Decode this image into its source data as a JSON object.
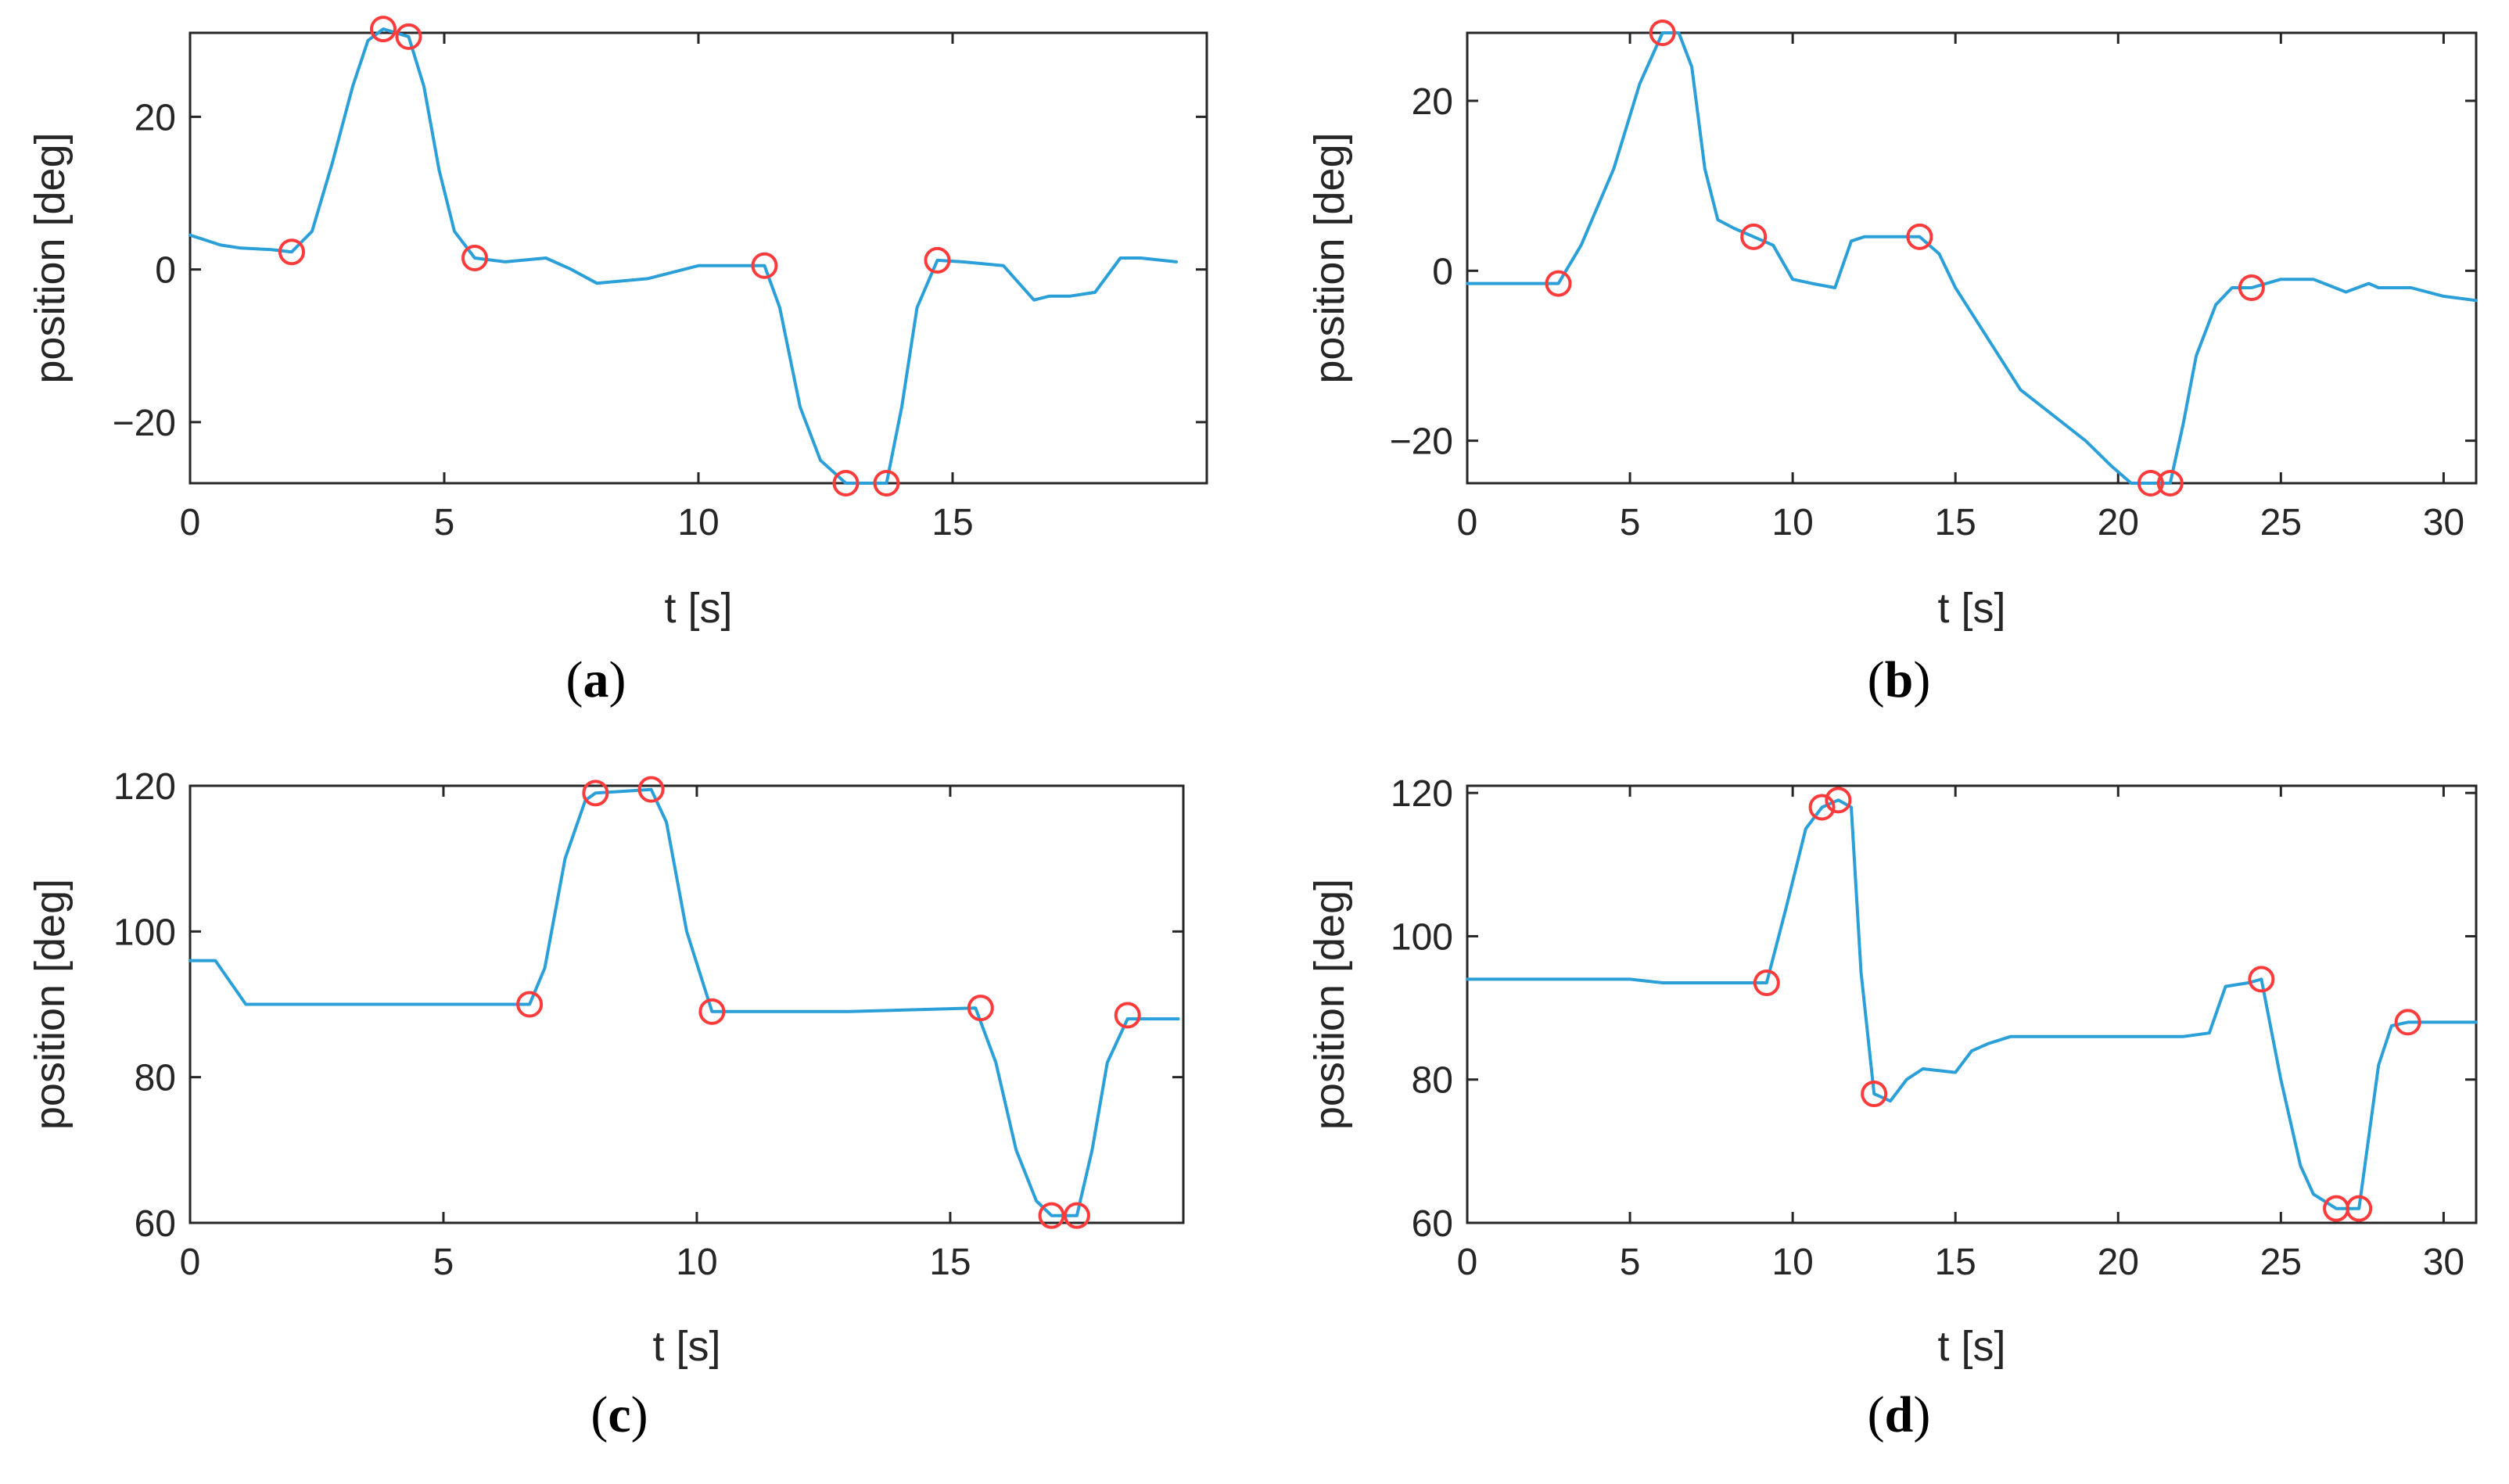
{
  "colors": {
    "line": "#2a9fd8",
    "marker": "#ff3b3b",
    "axis": "#262626",
    "background": "#ffffff"
  },
  "panel_labels": {
    "a": "a",
    "b": "b",
    "c": "c",
    "d": "d"
  },
  "chart_data": [
    {
      "id": "a",
      "type": "line",
      "title": "",
      "xlabel": "t [s]",
      "ylabel": "position [deg]",
      "xlim": [
        0,
        20
      ],
      "ylim": [
        -28,
        31
      ],
      "xticks": [
        0,
        5,
        10,
        15
      ],
      "yticks": [
        -20,
        0,
        20
      ],
      "grid": false,
      "series": [
        {
          "name": "position",
          "x": [
            0,
            0.6,
            1.0,
            1.6,
            2.0,
            2.4,
            2.8,
            3.2,
            3.5,
            3.8,
            4.3,
            4.6,
            4.9,
            5.2,
            5.6,
            6.2,
            7.0,
            7.5,
            8.0,
            9.0,
            10.0,
            11.3,
            11.6,
            12.0,
            12.4,
            12.9,
            13.7,
            14.0,
            14.3,
            14.7,
            15.2,
            16.0,
            16.6,
            16.9,
            17.3,
            17.8,
            18.3,
            18.7,
            19.4
          ],
          "y": [
            4.5,
            3.2,
            2.8,
            2.6,
            2.3,
            5,
            14,
            24,
            30,
            31.5,
            30.5,
            24,
            13,
            5,
            1.5,
            1.0,
            1.5,
            0,
            -1.8,
            -1.2,
            0.5,
            0.5,
            -5,
            -18,
            -25,
            -28,
            -28,
            -18,
            -5,
            1.2,
            1.0,
            0.5,
            -4,
            -3.5,
            -3.5,
            -3,
            1.5,
            1.5,
            1.0
          ]
        }
      ],
      "markers": {
        "x": [
          2.0,
          3.8,
          4.3,
          5.6,
          11.3,
          12.9,
          13.7,
          14.7
        ],
        "y": [
          2.3,
          31.5,
          30.5,
          1.5,
          0.5,
          -28,
          -28,
          1.2
        ]
      }
    },
    {
      "id": "b",
      "type": "line",
      "title": "",
      "xlabel": "t [s]",
      "ylabel": "position [deg]",
      "xlim": [
        0,
        31
      ],
      "ylim": [
        -25,
        28
      ],
      "xticks": [
        0,
        5,
        10,
        15,
        20,
        25,
        30
      ],
      "yticks": [
        -20,
        0,
        20
      ],
      "grid": false,
      "series": [
        {
          "name": "position",
          "x": [
            0,
            2.0,
            2.8,
            3.5,
            4.5,
            5.3,
            6.0,
            6.5,
            6.9,
            7.3,
            7.7,
            8.2,
            8.8,
            9.4,
            10.0,
            10.6,
            11.3,
            11.8,
            12.2,
            13.0,
            13.9,
            14.5,
            15.0,
            16.0,
            17.0,
            18.0,
            19.0,
            19.8,
            20.4,
            21.0,
            21.6,
            22.0,
            22.4,
            23.0,
            23.5,
            24.1,
            25.0,
            26.0,
            27.0,
            27.7,
            28.0,
            29.0,
            30.0,
            31.0
          ],
          "y": [
            -1.5,
            -1.5,
            -1.5,
            3,
            12,
            22,
            28,
            28,
            24,
            12,
            6,
            5,
            4,
            3,
            -1,
            -1.5,
            -2,
            3.5,
            4,
            4,
            4,
            2,
            -2,
            -8,
            -14,
            -17,
            -20,
            -23,
            -25,
            -25,
            -25,
            -18,
            -10,
            -4,
            -2,
            -2,
            -1,
            -1,
            -2.5,
            -1.5,
            -2,
            -2,
            -3,
            -3.5
          ]
        }
      ],
      "markers": {
        "x": [
          2.8,
          6.0,
          8.8,
          13.9,
          21.0,
          21.6,
          24.1
        ],
        "y": [
          -1.5,
          28,
          4,
          4,
          -25,
          -25,
          -2
        ]
      }
    },
    {
      "id": "c",
      "type": "line",
      "title": "",
      "xlabel": "t [s]",
      "ylabel": "position [deg]",
      "xlim": [
        0,
        19.6
      ],
      "ylim": [
        60,
        120
      ],
      "xticks": [
        0,
        5,
        10,
        15
      ],
      "yticks": [
        60,
        80,
        100,
        120
      ],
      "grid": false,
      "series": [
        {
          "name": "position",
          "x": [
            0,
            0.5,
            0.8,
            1.1,
            1.5,
            3.0,
            5.0,
            6.7,
            7.0,
            7.4,
            7.8,
            8.0,
            9.1,
            9.4,
            9.8,
            10.3,
            11.0,
            13.0,
            15.5,
            15.9,
            16.3,
            16.7,
            17.0,
            17.5,
            17.8,
            18.1,
            18.5,
            19.0,
            19.5
          ],
          "y": [
            96,
            96,
            93,
            90,
            90,
            90,
            90,
            90,
            95,
            110,
            118,
            119,
            119.5,
            115,
            100,
            89,
            89,
            89,
            89.5,
            82,
            70,
            63,
            61,
            61,
            70,
            82,
            88,
            88,
            88
          ]
        }
      ],
      "markers": {
        "x": [
          6.7,
          8.0,
          9.1,
          10.3,
          15.6,
          17.0,
          17.5,
          18.5
        ],
        "y": [
          90,
          119,
          119.5,
          89,
          89.5,
          61,
          61,
          88.5
        ]
      }
    },
    {
      "id": "d",
      "type": "line",
      "title": "",
      "xlabel": "t [s]",
      "ylabel": "position [deg]",
      "xlim": [
        0,
        31
      ],
      "ylim": [
        60,
        121
      ],
      "xticks": [
        0,
        5,
        10,
        15,
        20,
        25,
        30
      ],
      "yticks": [
        60,
        80,
        100,
        120
      ],
      "grid": false,
      "series": [
        {
          "name": "position",
          "x": [
            0,
            5.0,
            6.0,
            9.0,
            9.2,
            9.8,
            10.4,
            10.9,
            11.4,
            11.8,
            12.1,
            12.5,
            13.0,
            13.5,
            14.0,
            15.0,
            15.5,
            16.0,
            16.7,
            18.0,
            20.0,
            22.0,
            22.8,
            23.3,
            24.0,
            24.4,
            25.0,
            25.6,
            26.0,
            26.7,
            27.4,
            28.0,
            28.4,
            28.9,
            30.0,
            31.0
          ],
          "y": [
            94,
            94,
            93.5,
            93.5,
            93.5,
            104,
            115,
            118,
            119,
            118,
            95,
            78,
            77,
            80,
            81.5,
            81,
            84,
            85,
            86,
            86,
            86,
            86,
            86.5,
            93,
            93.5,
            94,
            80,
            68,
            64,
            62,
            62,
            82,
            87.5,
            88,
            88,
            88
          ]
        }
      ],
      "markers": {
        "x": [
          9.2,
          10.9,
          11.4,
          12.5,
          24.4,
          26.7,
          27.4,
          28.9
        ],
        "y": [
          93.5,
          118,
          119,
          78,
          94,
          62,
          62,
          88
        ]
      }
    }
  ]
}
